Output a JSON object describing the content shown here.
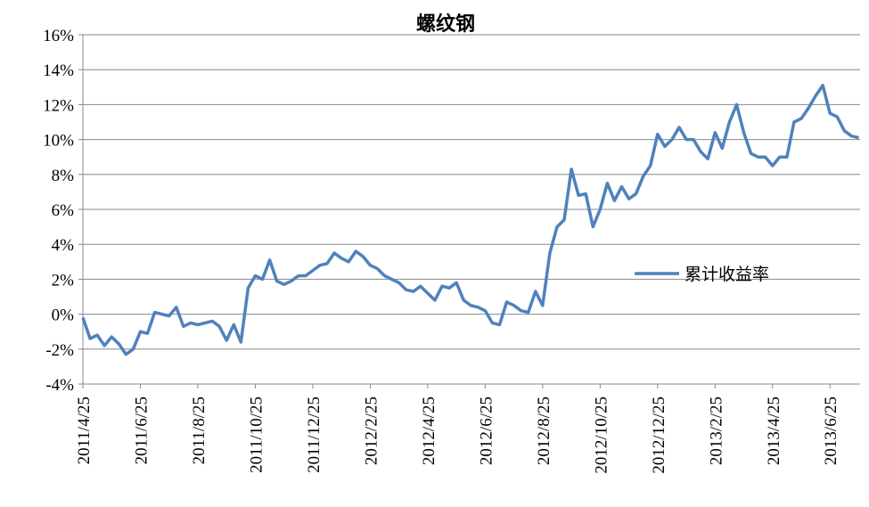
{
  "chart_data": {
    "type": "line",
    "title": "螺纹钢",
    "categories": [
      "2011/4/25",
      null,
      null,
      null,
      null,
      null,
      null,
      null,
      "2011/6/25",
      null,
      null,
      null,
      null,
      null,
      null,
      null,
      "2011/8/25",
      null,
      null,
      null,
      null,
      null,
      null,
      null,
      "2011/10/25",
      null,
      null,
      null,
      null,
      null,
      null,
      null,
      "2011/12/25",
      null,
      null,
      null,
      null,
      null,
      null,
      null,
      "2012/2/25",
      null,
      null,
      null,
      null,
      null,
      null,
      null,
      "2012/4/25",
      null,
      null,
      null,
      null,
      null,
      null,
      null,
      "2012/6/25",
      null,
      null,
      null,
      null,
      null,
      null,
      null,
      "2012/8/25",
      null,
      null,
      null,
      null,
      null,
      null,
      null,
      "2012/10/25",
      null,
      null,
      null,
      null,
      null,
      null,
      null,
      "2012/12/25",
      null,
      null,
      null,
      null,
      null,
      null,
      null,
      "2013/2/25",
      null,
      null,
      null,
      null,
      null,
      null,
      null,
      "2013/4/25",
      null,
      null,
      null,
      null,
      null,
      null,
      null,
      "2013/6/25",
      null,
      null,
      null,
      null
    ],
    "series": [
      {
        "name": "累计收益率",
        "color": "#4f81bd",
        "values": [
          -0.2,
          -1.4,
          -1.2,
          -1.8,
          -1.3,
          -1.7,
          -2.3,
          -2.0,
          -1.0,
          -1.1,
          0.1,
          0.0,
          -0.1,
          0.4,
          -0.7,
          -0.5,
          -0.6,
          -0.5,
          -0.4,
          -0.7,
          -1.5,
          -0.6,
          -1.6,
          1.5,
          2.2,
          2.0,
          3.1,
          1.9,
          1.7,
          1.9,
          2.2,
          2.2,
          2.5,
          2.8,
          2.9,
          3.5,
          3.2,
          3.0,
          3.6,
          3.3,
          2.8,
          2.6,
          2.2,
          2.0,
          1.8,
          1.4,
          1.3,
          1.6,
          1.2,
          0.8,
          1.6,
          1.5,
          1.8,
          0.8,
          0.5,
          0.4,
          0.2,
          -0.5,
          -0.6,
          0.7,
          0.5,
          0.2,
          0.1,
          1.3,
          0.5,
          3.5,
          5.0,
          5.4,
          8.3,
          6.8,
          6.9,
          5.0,
          6.0,
          7.5,
          6.5,
          7.3,
          6.6,
          6.9,
          7.9,
          8.5,
          10.3,
          9.6,
          10.0,
          10.7,
          10.0,
          10.0,
          9.3,
          8.9,
          10.4,
          9.5,
          11.0,
          12.0,
          10.4,
          9.2,
          9.0,
          9.0,
          8.5,
          9.0,
          9.0,
          11.0,
          11.2,
          11.8,
          12.5,
          13.1,
          11.5,
          11.3,
          10.5,
          10.2,
          10.1
        ]
      }
    ],
    "ylim": [
      -4,
      16
    ],
    "yticks": [
      {
        "value": -4,
        "label": "-4%"
      },
      {
        "value": -2,
        "label": "-2%"
      },
      {
        "value": 0,
        "label": "0%"
      },
      {
        "value": 2,
        "label": "2%"
      },
      {
        "value": 4,
        "label": "4%"
      },
      {
        "value": 6,
        "label": "6%"
      },
      {
        "value": 8,
        "label": "8%"
      },
      {
        "value": 10,
        "label": "10%"
      },
      {
        "value": 12,
        "label": "12%"
      },
      {
        "value": 14,
        "label": "14%"
      },
      {
        "value": 16,
        "label": "16%"
      }
    ],
    "grid": true,
    "legend": "right"
  }
}
